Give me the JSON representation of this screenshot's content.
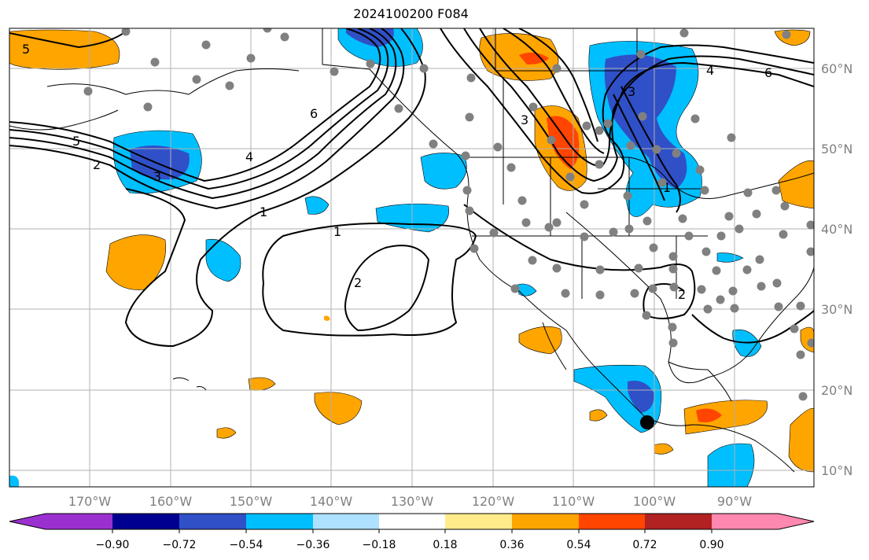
{
  "title": "2024100200 F084",
  "lon_labels": [
    "170°W",
    "160°W",
    "150°W",
    "140°W",
    "130°W",
    "120°W",
    "110°W",
    "100°W",
    "90°W"
  ],
  "lat_labels": [
    "60°N",
    "50°N",
    "40°N",
    "30°N",
    "20°N",
    "10°N"
  ],
  "colorbar": {
    "ticks": [
      "−0.90",
      "−0.72",
      "−0.54",
      "−0.36",
      "−0.18",
      "0.18",
      "0.36",
      "0.54",
      "0.72",
      "0.90"
    ],
    "colors": [
      "#9b30d0",
      "#000090",
      "#3050c8",
      "#00bfff",
      "#aee0ff",
      "#ffffff",
      "#ffeb8a",
      "#ffa500",
      "#ff4500",
      "#b22222",
      "#ff88b0"
    ]
  },
  "contour_labels": [
    "6",
    "4",
    "3",
    "5",
    "2",
    "1",
    "1",
    "2",
    "3",
    "4",
    "6",
    "3",
    "5",
    "1",
    "2"
  ],
  "marker": "black-dot"
}
